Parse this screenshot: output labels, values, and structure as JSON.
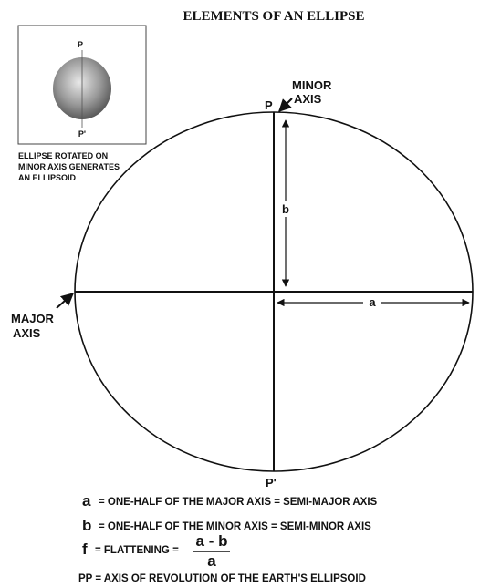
{
  "title": "ELEMENTS OF AN ELLIPSE",
  "inset": {
    "top_label": "P",
    "bottom_label": "P'",
    "caption": [
      "ELLIPSE ROTATED ON",
      "MINOR AXIS GENERATES",
      "AN ELLIPSOID"
    ]
  },
  "labels": {
    "p": "P",
    "p_prime": "P'",
    "minor_axis": [
      "MINOR",
      "AXIS"
    ],
    "major_axis": [
      "MAJOR",
      "AXIS"
    ],
    "semi_minor": "b",
    "semi_major": "a"
  },
  "legend": [
    {
      "symbol": "a",
      "text": "= ONE-HALF OF THE MAJOR AXIS = SEMI-MAJOR AXIS"
    },
    {
      "symbol": "b",
      "text": "= ONE-HALF OF THE MINOR AXIS = SEMI-MINOR AXIS"
    },
    {
      "symbol": "f",
      "text": "= FLATTENING =",
      "numerator": "a - b",
      "denominator": "a"
    },
    {
      "text": "PP = AXIS OF REVOLUTION OF THE EARTH'S ELLIPSOID"
    }
  ]
}
